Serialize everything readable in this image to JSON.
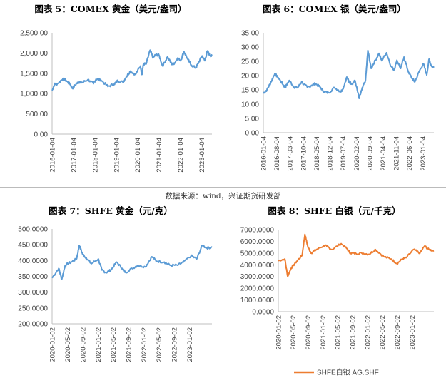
{
  "source": "数据来源：wind，兴证期货研发部",
  "chart_data": [
    {
      "id": "c5",
      "type": "line",
      "title": "图表 5：COMEX 黄金（美元/盎司）",
      "y_ticks": [
        "2,500.00",
        "2,000.00",
        "1,500.00",
        "1,000.00",
        "500.00",
        "0.00"
      ],
      "ylim": [
        0,
        2500
      ],
      "x_ticks": [
        "2016-01-04",
        "2017-01-04",
        "2018-01-04",
        "2019-01-04",
        "2020-01-04",
        "2021-01-04",
        "2022-01-04",
        "2023-01-04"
      ],
      "xlim": [
        "2016-01-04",
        "2023-07-01"
      ],
      "color": "#5b9bd5",
      "series": [
        {
          "x": [
            "2016-01-04",
            "2016-02-15",
            "2016-04-01",
            "2016-07-06",
            "2016-09-01",
            "2016-11-10",
            "2016-12-15",
            "2017-03-01",
            "2017-04-15",
            "2017-06-01",
            "2017-09-08",
            "2017-12-12",
            "2018-01-25",
            "2018-04-15",
            "2018-08-16",
            "2018-12-01",
            "2019-01-31",
            "2019-05-01",
            "2019-06-25",
            "2019-09-04",
            "2019-12-01",
            "2020-02-24",
            "2020-03-19",
            "2020-04-15",
            "2020-06-01",
            "2020-08-06",
            "2020-09-28",
            "2020-11-09",
            "2021-01-05",
            "2021-03-08",
            "2021-05-31",
            "2021-08-10",
            "2021-09-30",
            "2021-11-16",
            "2022-01-15",
            "2022-03-08",
            "2022-05-15",
            "2022-07-15",
            "2022-09-28",
            "2022-11-15",
            "2023-01-15",
            "2023-03-01",
            "2023-04-13",
            "2023-05-20",
            "2023-06-30"
          ],
          "y": [
            1075,
            1230,
            1240,
            1365,
            1320,
            1225,
            1130,
            1250,
            1290,
            1270,
            1345,
            1245,
            1360,
            1340,
            1175,
            1235,
            1320,
            1280,
            1410,
            1555,
            1470,
            1680,
            1470,
            1730,
            1730,
            2070,
            1880,
            1960,
            1950,
            1680,
            1905,
            1730,
            1750,
            1870,
            1820,
            2040,
            1840,
            1700,
            1630,
            1770,
            1930,
            1810,
            2050,
            1960,
            1920
          ]
        }
      ]
    },
    {
      "id": "c6",
      "type": "line",
      "title": "图表 6：COMEX 银（美元/盎司）",
      "y_ticks": [
        "35.00",
        "30.00",
        "25.00",
        "20.00",
        "15.00",
        "10.00",
        "5.00",
        "0.00"
      ],
      "ylim": [
        0,
        35
      ],
      "x_ticks": [
        "2016-01-04",
        "2016-08-04",
        "2017-03-04",
        "2017-10-04",
        "2018-05-04",
        "2018-12-04",
        "2019-07-04",
        "2020-02-04",
        "2020-09-04",
        "2021-04-04",
        "2021-11-04",
        "2022-06-04",
        "2023-01-04"
      ],
      "xlim": [
        "2016-01-04",
        "2023-07-01"
      ],
      "color": "#5b9bd5",
      "series": [
        {
          "x": [
            "2016-01-04",
            "2016-03-01",
            "2016-05-01",
            "2016-07-06",
            "2016-09-01",
            "2016-11-15",
            "2016-12-20",
            "2017-02-24",
            "2017-05-09",
            "2017-07-10",
            "2017-09-08",
            "2017-12-12",
            "2018-02-15",
            "2018-04-19",
            "2018-07-01",
            "2018-09-01",
            "2018-11-13",
            "2019-02-20",
            "2019-05-28",
            "2019-07-01",
            "2019-09-04",
            "2019-10-15",
            "2019-12-01",
            "2020-01-15",
            "2020-03-19",
            "2020-05-01",
            "2020-07-01",
            "2020-08-07",
            "2020-09-28",
            "2020-11-01",
            "2021-02-01",
            "2021-03-15",
            "2021-06-01",
            "2021-08-15",
            "2021-10-01",
            "2021-11-15",
            "2022-01-15",
            "2022-03-08",
            "2022-05-15",
            "2022-07-15",
            "2022-08-31",
            "2022-11-15",
            "2023-01-15",
            "2023-03-08",
            "2023-04-15",
            "2023-05-20",
            "2023-06-30"
          ],
          "y": [
            13.8,
            15.0,
            17.5,
            20.7,
            19.2,
            16.8,
            15.9,
            18.3,
            16.0,
            15.8,
            17.8,
            15.8,
            16.6,
            17.2,
            16.0,
            14.4,
            14.0,
            15.8,
            14.4,
            15.2,
            19.5,
            17.6,
            17.2,
            18.2,
            12.0,
            15.0,
            18.5,
            28.8,
            22.5,
            24.0,
            27.8,
            25.2,
            28.0,
            23.2,
            22.0,
            25.4,
            22.5,
            26.5,
            21.5,
            19.0,
            17.8,
            21.8,
            24.2,
            20.2,
            25.8,
            23.5,
            22.8
          ]
        }
      ]
    },
    {
      "id": "c7",
      "type": "line",
      "title": "图表 7：SHFE 黄金（元/克）",
      "y_ticks": [
        "500.0000",
        "450.0000",
        "400.0000",
        "350.0000",
        "300.0000",
        "250.0000",
        "200.0000"
      ],
      "ylim": [
        200,
        500
      ],
      "x_ticks": [
        "2020-01-02",
        "2020-05-02",
        "2020-09-02",
        "2021-01-02",
        "2021-05-02",
        "2021-09-02",
        "2022-01-02",
        "2022-05-02",
        "2022-09-02",
        "2023-01-02"
      ],
      "xlim": [
        "2020-01-02",
        "2023-06-30"
      ],
      "color": "#5b9bd5",
      "series": [
        {
          "x": [
            "2020-01-02",
            "2020-02-24",
            "2020-03-19",
            "2020-04-15",
            "2020-06-01",
            "2020-07-15",
            "2020-08-06",
            "2020-09-01",
            "2020-10-01",
            "2020-11-10",
            "2021-01-05",
            "2021-02-01",
            "2021-03-08",
            "2021-04-15",
            "2021-05-31",
            "2021-07-15",
            "2021-08-10",
            "2021-10-01",
            "2021-11-16",
            "2022-01-15",
            "2022-03-08",
            "2022-04-15",
            "2022-06-15",
            "2022-08-01",
            "2022-09-28",
            "2022-11-15",
            "2023-01-15",
            "2023-03-01",
            "2023-04-13",
            "2023-05-20",
            "2023-06-30"
          ],
          "y": [
            345,
            375,
            340,
            385,
            395,
            405,
            448,
            420,
            408,
            390,
            405,
            370,
            362,
            370,
            395,
            375,
            362,
            375,
            385,
            380,
            412,
            398,
            395,
            385,
            385,
            395,
            415,
            405,
            448,
            440,
            442
          ]
        }
      ]
    },
    {
      "id": "c8",
      "type": "line",
      "title": "图表 8：SHFE 白银（元/千克）",
      "y_ticks": [
        "7000.0000",
        "6000.0000",
        "5000.0000",
        "4000.0000",
        "3000.0000",
        "2000.0000",
        "1000.0000",
        "0.0000"
      ],
      "ylim": [
        0,
        7000
      ],
      "x_ticks": [
        "2020-01-02",
        "2020-05-02",
        "2020-09-02",
        "2021-01-02",
        "2021-05-02",
        "2021-09-02",
        "2022-01-02",
        "2022-05-02",
        "2022-09-02",
        "2023-01-02"
      ],
      "xlim": [
        "2020-01-02",
        "2023-06-30"
      ],
      "color": "#ed7d31",
      "legend": "SHFE白银 AG.SHF",
      "series": [
        {
          "x": [
            "2020-01-02",
            "2020-02-24",
            "2020-03-19",
            "2020-04-15",
            "2020-06-01",
            "2020-07-15",
            "2020-08-07",
            "2020-09-01",
            "2020-09-28",
            "2020-11-10",
            "2021-01-05",
            "2021-02-01",
            "2021-03-15",
            "2021-05-31",
            "2021-07-15",
            "2021-08-15",
            "2021-10-01",
            "2021-11-15",
            "2022-01-15",
            "2022-03-08",
            "2022-05-15",
            "2022-07-15",
            "2022-08-31",
            "2022-10-15",
            "2022-11-15",
            "2023-01-15",
            "2023-03-08",
            "2023-04-15",
            "2023-05-20",
            "2023-06-30"
          ],
          "y": [
            4350,
            4500,
            3000,
            3700,
            4300,
            4800,
            6600,
            5500,
            5000,
            5300,
            5600,
            5600,
            5300,
            5800,
            5400,
            5000,
            4950,
            5000,
            4900,
            5300,
            4700,
            4500,
            4100,
            4500,
            4600,
            5300,
            5000,
            5600,
            5300,
            5200
          ]
        }
      ]
    }
  ]
}
